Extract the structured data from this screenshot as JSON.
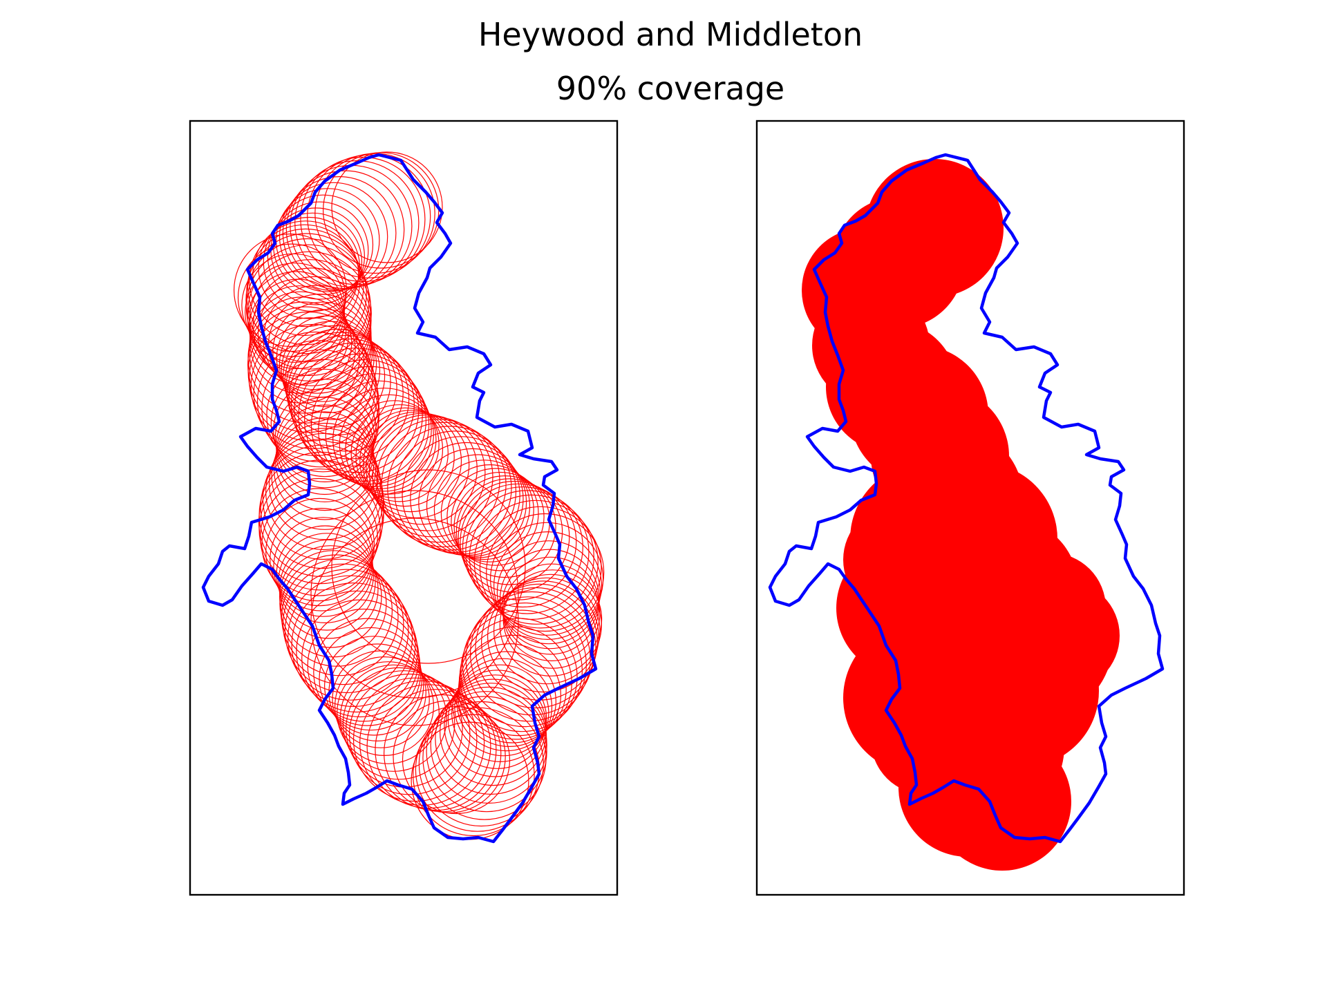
{
  "title": "Heywood and Middleton",
  "subtitle": "90% coverage",
  "colors": {
    "boundary": "#0000ff",
    "coverage": "#ff0000",
    "frame": "#000000",
    "background": "#ffffff"
  },
  "panels": [
    {
      "name": "coverage-circles-panel",
      "style": "outline"
    },
    {
      "name": "coverage-filled-panel",
      "style": "filled"
    }
  ]
}
